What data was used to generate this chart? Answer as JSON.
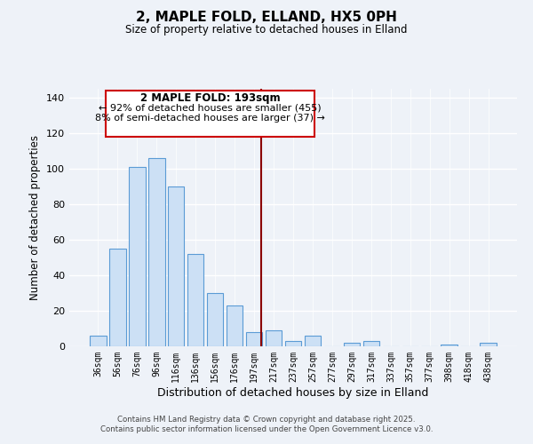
{
  "title": "2, MAPLE FOLD, ELLAND, HX5 0PH",
  "subtitle": "Size of property relative to detached houses in Elland",
  "xlabel": "Distribution of detached houses by size in Elland",
  "ylabel": "Number of detached properties",
  "bar_labels": [
    "36sqm",
    "56sqm",
    "76sqm",
    "96sqm",
    "116sqm",
    "136sqm",
    "156sqm",
    "176sqm",
    "197sqm",
    "217sqm",
    "237sqm",
    "257sqm",
    "277sqm",
    "297sqm",
    "317sqm",
    "337sqm",
    "357sqm",
    "377sqm",
    "398sqm",
    "418sqm",
    "438sqm"
  ],
  "bar_values": [
    6,
    55,
    101,
    106,
    90,
    52,
    30,
    23,
    8,
    9,
    3,
    6,
    0,
    2,
    3,
    0,
    0,
    0,
    1,
    0,
    2
  ],
  "bar_color": "#cce0f5",
  "bar_edge_color": "#5b9bd5",
  "vline_index": 8,
  "vline_color": "#8b0000",
  "annotation_title": "2 MAPLE FOLD: 193sqm",
  "annotation_line1": "← 92% of detached houses are smaller (455)",
  "annotation_line2": "8% of semi-detached houses are larger (37) →",
  "annotation_box_color": "#ffffff",
  "annotation_box_edge": "#cc0000",
  "ylim": [
    0,
    145
  ],
  "yticks": [
    0,
    20,
    40,
    60,
    80,
    100,
    120,
    140
  ],
  "footer_line1": "Contains HM Land Registry data © Crown copyright and database right 2025.",
  "footer_line2": "Contains public sector information licensed under the Open Government Licence v3.0.",
  "background_color": "#eef2f8",
  "grid_color": "#ffffff"
}
